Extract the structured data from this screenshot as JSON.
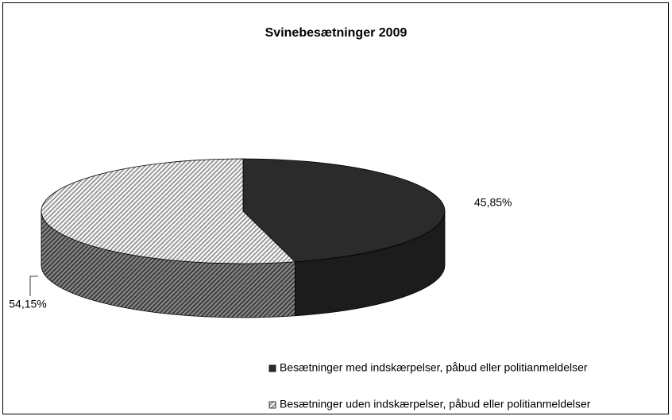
{
  "chart_data": {
    "type": "pie",
    "title": "Svinebesætninger 2009",
    "categories": [
      "Besætninger med indskærpelser, påbud eller politianmeldelser",
      "Besætninger uden indskærpelser, påbud eller politianmeldelser"
    ],
    "values": [
      45.85,
      54.15
    ],
    "value_labels": [
      "45,85%",
      "54,15%"
    ],
    "colors": [
      "#2b2b2b",
      "#c8c8c8"
    ]
  }
}
